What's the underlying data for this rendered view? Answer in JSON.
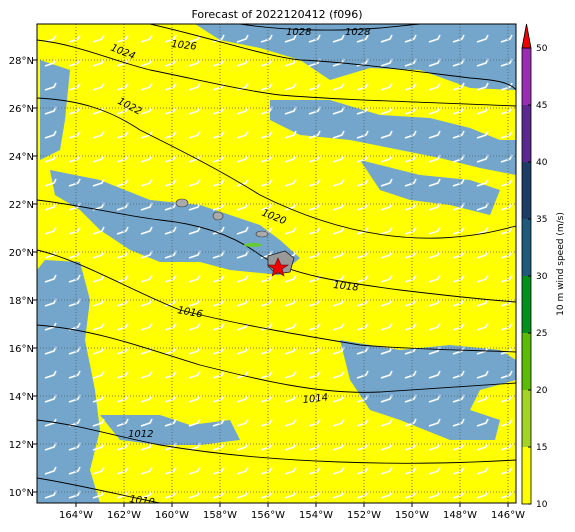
{
  "title": "Forecast of 2022120412 (f096)",
  "lon_labels": [
    "164°W",
    "162°W",
    "160°W",
    "158°W",
    "156°W",
    "154°W",
    "152°W",
    "150°W",
    "148°W",
    "146°W"
  ],
  "lat_labels": [
    "28°N",
    "26°N",
    "24°N",
    "22°N",
    "20°N",
    "18°N",
    "16°N",
    "14°N",
    "12°N",
    "10°N"
  ],
  "isobar_labels": [
    1024,
    1026,
    1028,
    1028,
    1022,
    1020,
    1018,
    1016,
    1014,
    1012,
    1010
  ],
  "colorbar": {
    "label": "10 m wind speed (m/s)",
    "ticks": [
      10,
      15,
      20,
      25,
      30,
      35,
      40,
      45,
      50
    ],
    "lim": [
      10,
      50
    ],
    "colors": [
      "#ffff00",
      "#a4d420",
      "#5cbc00",
      "#00901c",
      "#1f5a7a",
      "#1d3d66",
      "#5a2890",
      "#9a2cb4"
    ],
    "extend_color": "#ee0000"
  }
}
